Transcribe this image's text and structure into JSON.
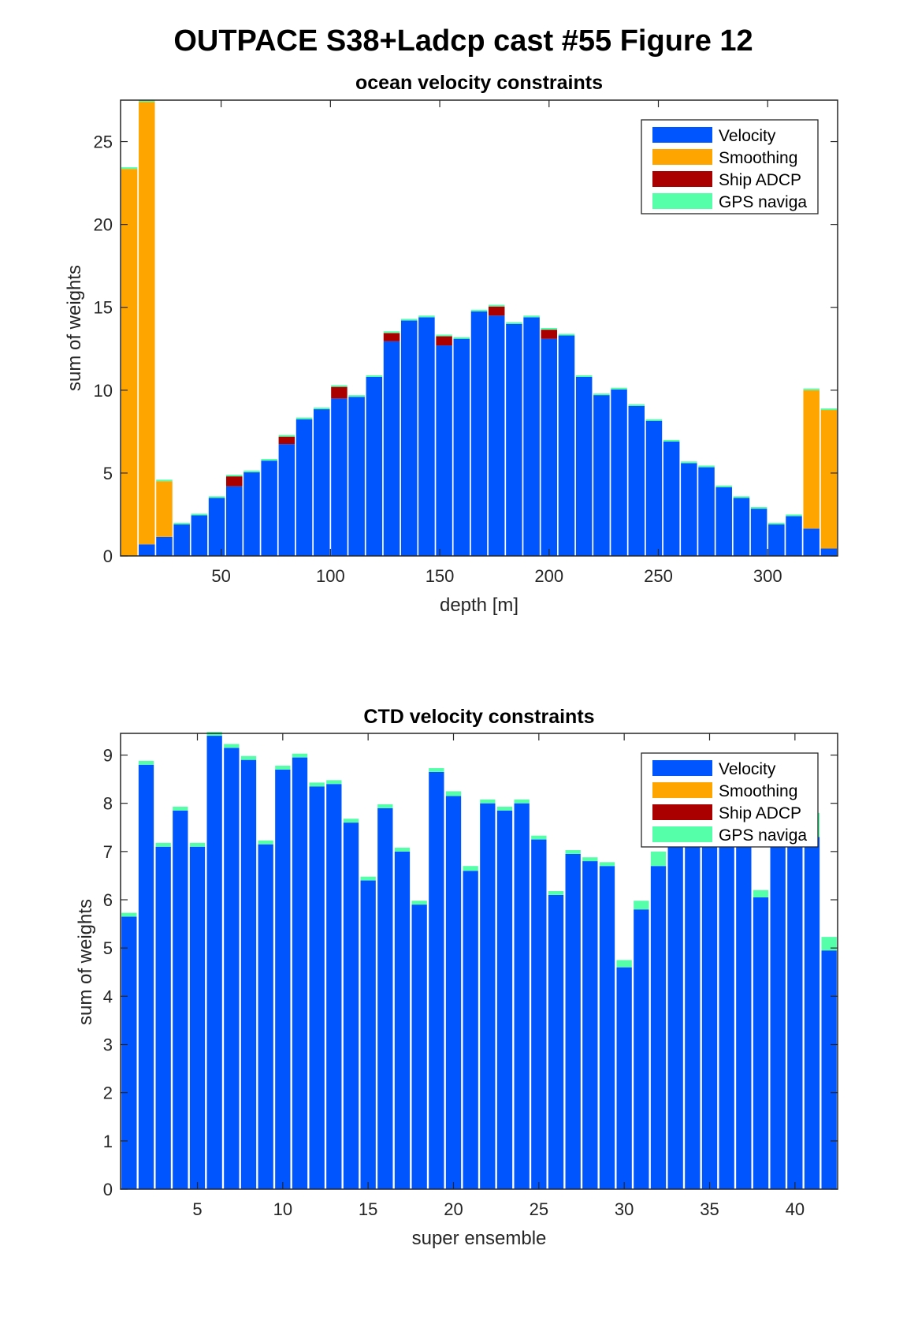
{
  "figure": {
    "title": "OUTPACE S38+Ladcp cast #55  Figure 12"
  },
  "colors": {
    "velocity": "#0055FF",
    "smoothing": "#FFA500",
    "ship_adcp": "#AA0000",
    "gps": "#55FFAA"
  },
  "chart_data": [
    {
      "type": "bar",
      "stacked": true,
      "title": "ocean velocity constraints",
      "xlabel": "depth [m]",
      "ylabel": "sum of weights",
      "xlim": [
        4,
        332
      ],
      "ylim": [
        0,
        27.5
      ],
      "xticks": [
        50,
        100,
        150,
        200,
        250,
        300
      ],
      "yticks": [
        0,
        5,
        10,
        15,
        20,
        25
      ],
      "legend": {
        "placement": "top-right",
        "entries": [
          "Velocity",
          "Smoothing",
          "Ship ADCP",
          "GPS naviga"
        ]
      },
      "x": [
        8,
        16,
        24,
        32,
        40,
        48,
        56,
        64,
        72,
        80,
        88,
        96,
        104,
        112,
        120,
        128,
        136,
        144,
        152,
        160,
        168,
        176,
        184,
        192,
        200,
        208,
        216,
        224,
        232,
        240,
        248,
        256,
        264,
        272,
        280,
        288,
        296,
        304,
        312,
        320,
        328
      ],
      "series": [
        {
          "name": "Velocity",
          "values": [
            0,
            0.7,
            1.15,
            1.9,
            2.45,
            3.5,
            4.2,
            5.05,
            5.75,
            6.75,
            8.25,
            8.85,
            9.5,
            9.6,
            10.8,
            12.95,
            14.2,
            14.4,
            12.7,
            13.1,
            14.75,
            14.5,
            14.0,
            14.4,
            13.1,
            13.3,
            10.8,
            9.7,
            10.05,
            9.05,
            8.15,
            6.9,
            5.6,
            5.35,
            4.15,
            3.5,
            2.85,
            1.9,
            2.4,
            1.65,
            0.45
          ]
        },
        {
          "name": "Smoothing",
          "values": [
            23.35,
            26.7,
            3.35,
            0,
            0,
            0,
            0,
            0,
            0,
            0,
            0,
            0,
            0,
            0,
            0,
            0,
            0,
            0,
            0,
            0,
            0,
            0,
            0,
            0,
            0,
            0,
            0,
            0,
            0,
            0,
            0,
            0,
            0,
            0,
            0,
            0,
            0,
            0,
            0,
            8.35,
            8.35
          ]
        },
        {
          "name": "Ship ADCP",
          "values": [
            0,
            0,
            0,
            0,
            0,
            0,
            0.6,
            0,
            0,
            0.45,
            0,
            0,
            0.7,
            0,
            0,
            0.5,
            0,
            0,
            0.55,
            0,
            0,
            0.55,
            0,
            0,
            0.55,
            0,
            0,
            0,
            0,
            0,
            0,
            0,
            0,
            0,
            0,
            0,
            0,
            0,
            0,
            0,
            0
          ]
        },
        {
          "name": "GPS naviga",
          "values": [
            0.1,
            0.1,
            0.1,
            0.1,
            0.1,
            0.1,
            0.1,
            0.1,
            0.1,
            0.1,
            0.1,
            0.1,
            0.1,
            0.1,
            0.1,
            0.1,
            0.1,
            0.1,
            0.1,
            0.1,
            0.1,
            0.1,
            0.1,
            0.1,
            0.1,
            0.1,
            0.1,
            0.1,
            0.1,
            0.1,
            0.1,
            0.1,
            0.1,
            0.1,
            0.1,
            0.1,
            0.1,
            0.1,
            0.1,
            0.1,
            0.1
          ]
        }
      ]
    },
    {
      "type": "bar",
      "stacked": true,
      "title": "CTD velocity constraints",
      "xlabel": "super ensemble",
      "ylabel": "sum of weights",
      "xlim": [
        0.5,
        42.5
      ],
      "ylim": [
        0,
        9.45
      ],
      "xticks": [
        5,
        10,
        15,
        20,
        25,
        30,
        35,
        40
      ],
      "yticks": [
        0,
        1,
        2,
        3,
        4,
        5,
        6,
        7,
        8,
        9
      ],
      "legend": {
        "placement": "top-right",
        "entries": [
          "Velocity",
          "Smoothing",
          "Ship ADCP",
          "GPS naviga"
        ]
      },
      "x": [
        1,
        2,
        3,
        4,
        5,
        6,
        7,
        8,
        9,
        10,
        11,
        12,
        13,
        14,
        15,
        16,
        17,
        18,
        19,
        20,
        21,
        22,
        23,
        24,
        25,
        26,
        27,
        28,
        29,
        30,
        31,
        32,
        33,
        34,
        35,
        36,
        37,
        38,
        39,
        40,
        41,
        42
      ],
      "series": [
        {
          "name": "Velocity",
          "values": [
            5.65,
            8.8,
            7.1,
            7.85,
            7.1,
            9.4,
            9.15,
            8.9,
            7.15,
            8.7,
            8.95,
            8.35,
            8.4,
            7.6,
            6.4,
            7.9,
            7.0,
            5.9,
            8.65,
            8.15,
            6.6,
            8.0,
            7.85,
            8.0,
            7.25,
            6.1,
            6.95,
            6.8,
            6.7,
            4.6,
            5.8,
            6.7,
            7.3,
            7.3,
            7.3,
            7.3,
            7.3,
            6.05,
            7.3,
            7.3,
            7.3,
            4.95
          ]
        },
        {
          "name": "Smoothing",
          "values": [
            0,
            0,
            0,
            0,
            0,
            0,
            0,
            0,
            0,
            0,
            0,
            0,
            0,
            0,
            0,
            0,
            0,
            0,
            0,
            0,
            0,
            0,
            0,
            0,
            0,
            0,
            0,
            0,
            0,
            0,
            0,
            0,
            0,
            0,
            0,
            0,
            0,
            0,
            0,
            0,
            0,
            0
          ]
        },
        {
          "name": "Ship ADCP",
          "values": [
            0,
            0,
            0,
            0,
            0,
            0,
            0,
            0,
            0,
            0,
            0,
            0,
            0,
            0,
            0,
            0,
            0,
            0,
            0,
            0,
            0,
            0,
            0,
            0,
            0,
            0,
            0,
            0,
            0,
            0,
            0,
            0,
            0,
            0,
            0,
            0,
            0,
            0,
            0,
            0,
            0,
            0
          ]
        },
        {
          "name": "GPS naviga",
          "values": [
            0.08,
            0.08,
            0.08,
            0.08,
            0.08,
            0.08,
            0.08,
            0.08,
            0.08,
            0.08,
            0.08,
            0.08,
            0.08,
            0.08,
            0.08,
            0.08,
            0.08,
            0.08,
            0.08,
            0.1,
            0.1,
            0.08,
            0.08,
            0.08,
            0.08,
            0.08,
            0.08,
            0.08,
            0.08,
            0.15,
            0.18,
            0.3,
            0.08,
            0.08,
            0.08,
            0.08,
            0.08,
            0.15,
            0.08,
            0.08,
            0.5,
            0.28
          ]
        }
      ]
    }
  ]
}
